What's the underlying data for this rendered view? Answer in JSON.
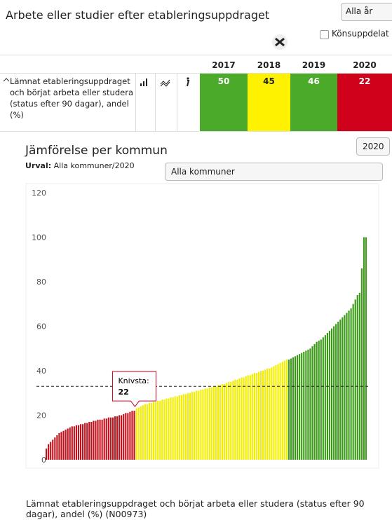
{
  "header": {
    "title": "Arbete eller studier efter etableringsuppdraget",
    "year_select": "Alla år",
    "checkbox_label": "Könsuppdelat"
  },
  "table": {
    "columns": [
      "2017",
      "2018",
      "2019",
      "2020"
    ],
    "row": {
      "label": "Lämnat etableringsuppdraget och börjat arbeta eller studera (status efter 90 dagar), andel (%)",
      "values": [
        50,
        45,
        46,
        22
      ],
      "colors": [
        "#4caa2a",
        "#fff200",
        "#4caa2a",
        "#d0021b"
      ]
    }
  },
  "section": {
    "title": "Jämförelse per kommun",
    "urval_label": "Urval:",
    "urval_value": "Alla kommuner/2020",
    "kommun_select": "Alla kommuner",
    "year_select": "2020"
  },
  "chart_data": {
    "type": "bar",
    "ylim": [
      0,
      120
    ],
    "yticks": [
      0,
      20,
      40,
      60,
      80,
      100,
      120
    ],
    "reference_line": 33,
    "tooltip": {
      "label": "Knivsta:",
      "value": 22
    },
    "series": [
      {
        "color": "#c0121d",
        "values": [
          5,
          7,
          8,
          9,
          10,
          11,
          12,
          12.5,
          13,
          13.5,
          14,
          14.5,
          15,
          15,
          15.5,
          15.5,
          16,
          16,
          16.5,
          16.5,
          17,
          17,
          17.5,
          17.5,
          18,
          18,
          18,
          18.5,
          18.5,
          19,
          19,
          19,
          19.5,
          19.5,
          20,
          20,
          20.5,
          21,
          21,
          21.5,
          22,
          22
        ]
      },
      {
        "color": "#f2ee00",
        "values": [
          23,
          23.5,
          24,
          24.5,
          25,
          25,
          25.5,
          25.5,
          26,
          26,
          26.5,
          26.5,
          27,
          27,
          27.5,
          27.5,
          28,
          28,
          28.5,
          28.5,
          29,
          29,
          29.5,
          29.5,
          30,
          30,
          30.5,
          30.5,
          31,
          31,
          31.5,
          31.5,
          32,
          32,
          32.5,
          32.5,
          33,
          33,
          33.5,
          33.5,
          34,
          34,
          34.5,
          35,
          35,
          35.5,
          36,
          36,
          36.5,
          37,
          37,
          37.5,
          38,
          38,
          38.5,
          39,
          39,
          39.5,
          40,
          40,
          40.5,
          41,
          41,
          41.5,
          42,
          42.5,
          43,
          43.5,
          44,
          44.5,
          45
        ]
      },
      {
        "color": "#3a9a16",
        "values": [
          45,
          45.5,
          46,
          46.5,
          47,
          47.5,
          48,
          48.5,
          49,
          49.5,
          50,
          51,
          52,
          53,
          53.5,
          54,
          55,
          56,
          57,
          58,
          59,
          60,
          61,
          62,
          63,
          64,
          65,
          66,
          67,
          68,
          70,
          72,
          74,
          75,
          86,
          100,
          100
        ]
      }
    ]
  },
  "footer": {
    "text": "Lämnat etableringsuppdraget och börjat arbeta eller studera (status efter 90 dagar), andel (%) (N00973)"
  }
}
